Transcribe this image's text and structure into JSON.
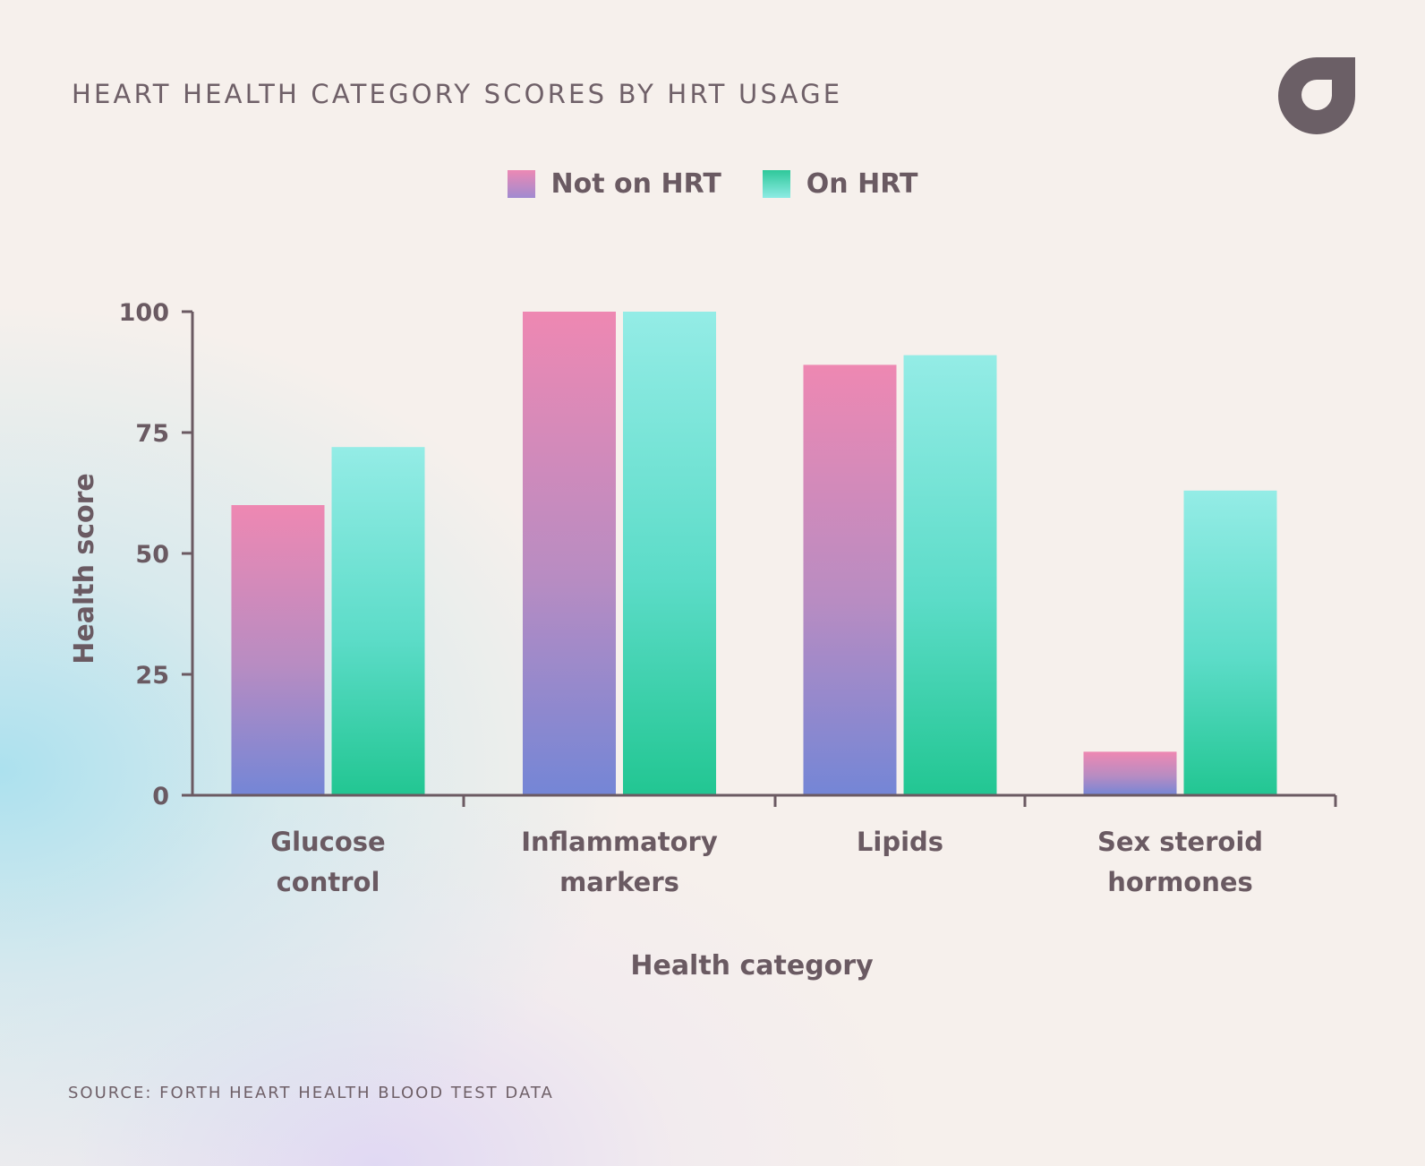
{
  "header": {
    "title": "HEART HEALTH CATEGORY SCORES BY HRT USAGE"
  },
  "logo": {
    "icon": "forth-logo-icon",
    "color": "#6b5f66"
  },
  "legend": {
    "items": [
      {
        "label": "Not on HRT",
        "color_top": "#ee88b2",
        "color_bottom": "#7486d6"
      },
      {
        "label": "On HRT",
        "color_top": "#94ece6",
        "color_bottom": "#22c692"
      }
    ]
  },
  "chart_data": {
    "type": "bar",
    "title": "HEART HEALTH CATEGORY SCORES BY HRT USAGE",
    "xlabel": "Health category",
    "ylabel": "Health score",
    "ylim": [
      0,
      100
    ],
    "yticks": [
      0,
      25,
      50,
      75,
      100
    ],
    "categories": [
      [
        "Glucose",
        "control"
      ],
      [
        "Inflammatory",
        "markers"
      ],
      [
        "Lipids"
      ],
      [
        "Sex steroid",
        "hormones"
      ]
    ],
    "series": [
      {
        "name": "Not on HRT",
        "values": [
          60,
          100,
          89,
          9
        ]
      },
      {
        "name": "On HRT",
        "values": [
          72,
          100,
          91,
          63
        ]
      }
    ],
    "grid": false,
    "legend_position": "top-center"
  },
  "footer": {
    "source": "SOURCE: FORTH HEART HEALTH BLOOD TEST DATA"
  }
}
